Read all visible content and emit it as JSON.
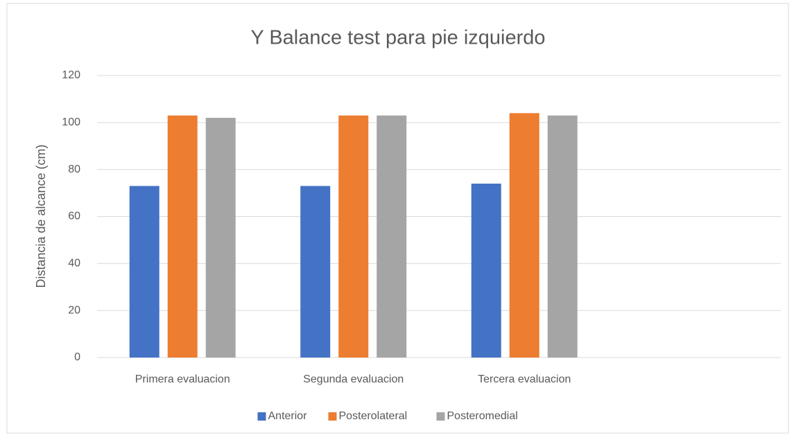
{
  "chart_data": {
    "type": "bar",
    "title": "Y Balance test para pie izquierdo",
    "ylabel": "Distancia de alcance (cm)",
    "categories": [
      "Primera evaluacion",
      "Segunda evaluacion",
      "Tercera evaluacion",
      null
    ],
    "series": [
      {
        "name": "Anterior",
        "color": "#4472c4",
        "values": [
          73,
          73,
          74,
          null
        ]
      },
      {
        "name": "Posterolateral",
        "color": "#ed7d31",
        "values": [
          103,
          103,
          104,
          null
        ]
      },
      {
        "name": "Posteromedial",
        "color": "#a5a5a5",
        "values": [
          102,
          103,
          103,
          null
        ]
      }
    ],
    "ylim": [
      0,
      120
    ],
    "yticks": [
      0,
      20,
      40,
      60,
      80,
      100,
      120
    ],
    "grid": true,
    "legend": "bottom"
  }
}
